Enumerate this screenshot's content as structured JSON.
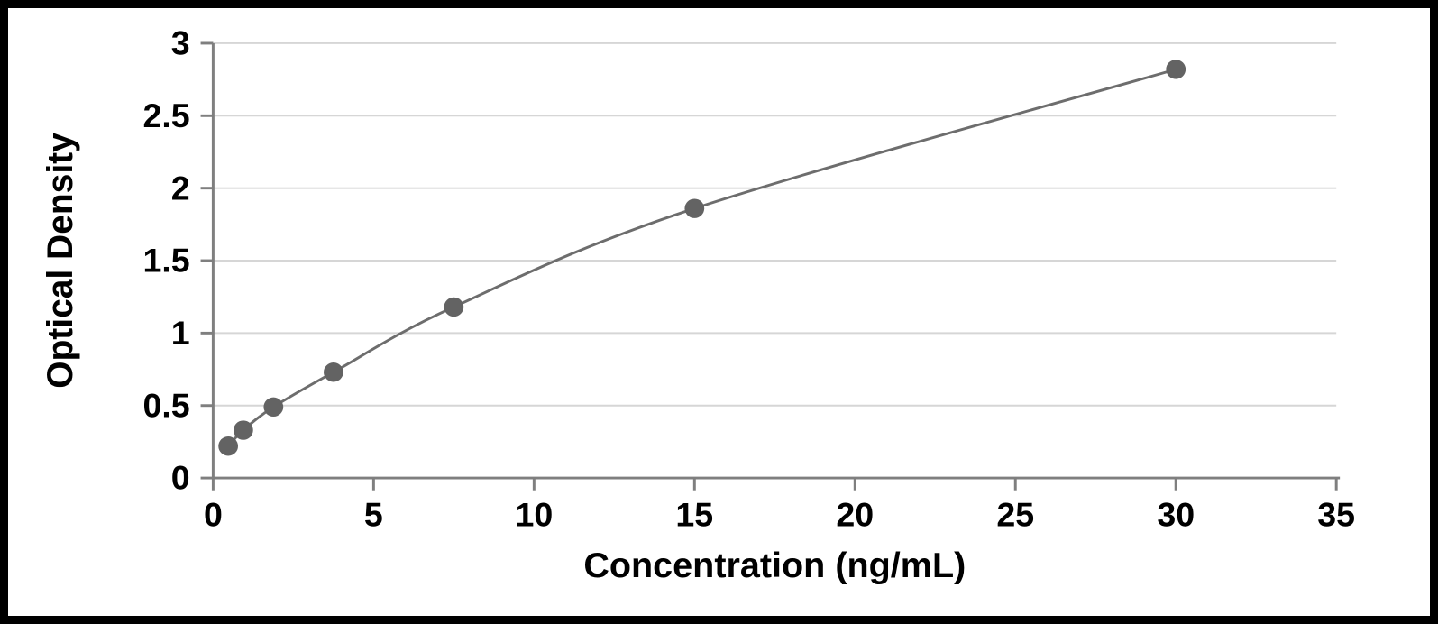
{
  "chart_data": {
    "type": "scatter",
    "title": "",
    "xlabel": "Concentration (ng/mL)",
    "ylabel": "Optical Density",
    "x": [
      0.47,
      0.94,
      1.88,
      3.75,
      7.5,
      15,
      30
    ],
    "y": [
      0.22,
      0.33,
      0.49,
      0.73,
      1.18,
      1.86,
      2.82
    ],
    "xlim": [
      0,
      35
    ],
    "ylim": [
      0,
      3
    ],
    "x_ticks": [
      0,
      5,
      10,
      15,
      20,
      25,
      30,
      35
    ],
    "y_ticks": [
      0,
      0.5,
      1,
      1.5,
      2,
      2.5,
      3
    ],
    "grid": "horizontal",
    "legend": "none",
    "marker_shape": "circle",
    "line_style": "smooth",
    "colors": {
      "marker": "#636363",
      "line": "#6d6d6d",
      "grid": "#d6d6d6",
      "axis": "#7f7f7f",
      "text": "#000000",
      "frame_border": "#000000",
      "background": "#ffffff"
    }
  }
}
